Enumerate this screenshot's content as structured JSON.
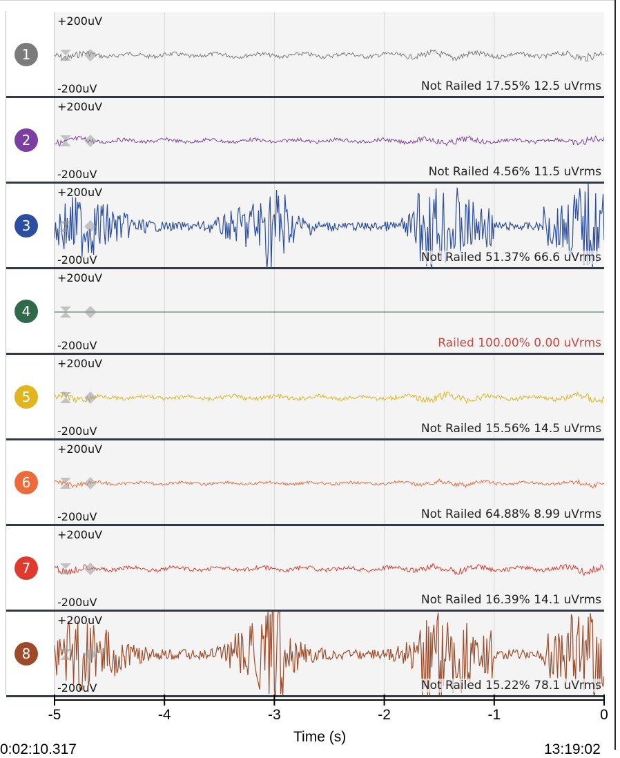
{
  "channels": [
    {
      "number": "1",
      "scale_top": "+200uV",
      "scale_bottom": "-200uV",
      "status": "Not Railed 17.55% 12.5 uVrms",
      "railed": false,
      "color": "#7b7b7b",
      "amplitude": 7
    },
    {
      "number": "2",
      "scale_top": "+200uV",
      "scale_bottom": "-200uV",
      "status": "Not Railed 4.56% 11.5 uVrms",
      "railed": false,
      "color": "#7b3fa0",
      "amplitude": 6
    },
    {
      "number": "3",
      "scale_top": "+200uV",
      "scale_bottom": "-200uV",
      "status": "Not Railed 51.37% 66.6 uVrms",
      "railed": false,
      "color": "#2c4ea0",
      "amplitude": 40
    },
    {
      "number": "4",
      "scale_top": "+200uV",
      "scale_bottom": "-200uV",
      "status": "Railed 100.00% 0.00 uVrms",
      "railed": true,
      "color": "#2f6b4a",
      "amplitude": 0
    },
    {
      "number": "5",
      "scale_top": "+200uV",
      "scale_bottom": "-200uV",
      "status": "Not Railed 15.56% 14.5 uVrms",
      "railed": false,
      "color": "#e0b520",
      "amplitude": 7
    },
    {
      "number": "6",
      "scale_top": "+200uV",
      "scale_bottom": "-200uV",
      "status": "Not Railed 64.88% 8.99 uVrms",
      "railed": false,
      "color": "#ef6a3a",
      "amplitude": 5
    },
    {
      "number": "7",
      "scale_top": "+200uV",
      "scale_bottom": "-200uV",
      "status": "Not Railed 16.39% 14.1 uVrms",
      "railed": false,
      "color": "#e03a2e",
      "amplitude": 7
    },
    {
      "number": "8",
      "scale_top": "+200uV",
      "scale_bottom": "-200uV",
      "status": "Not Railed 15.22% 78.1 uVrms",
      "railed": false,
      "color": "#9e4a28",
      "amplitude": 46
    }
  ],
  "axis": {
    "ticks": [
      "-5",
      "-4",
      "-3",
      "-2",
      "-1",
      "0"
    ],
    "xlabel": "Time (s)",
    "xlim": [
      -5,
      0
    ]
  },
  "footer": {
    "left": "0:02:10.317",
    "right": "13:19:02"
  }
}
